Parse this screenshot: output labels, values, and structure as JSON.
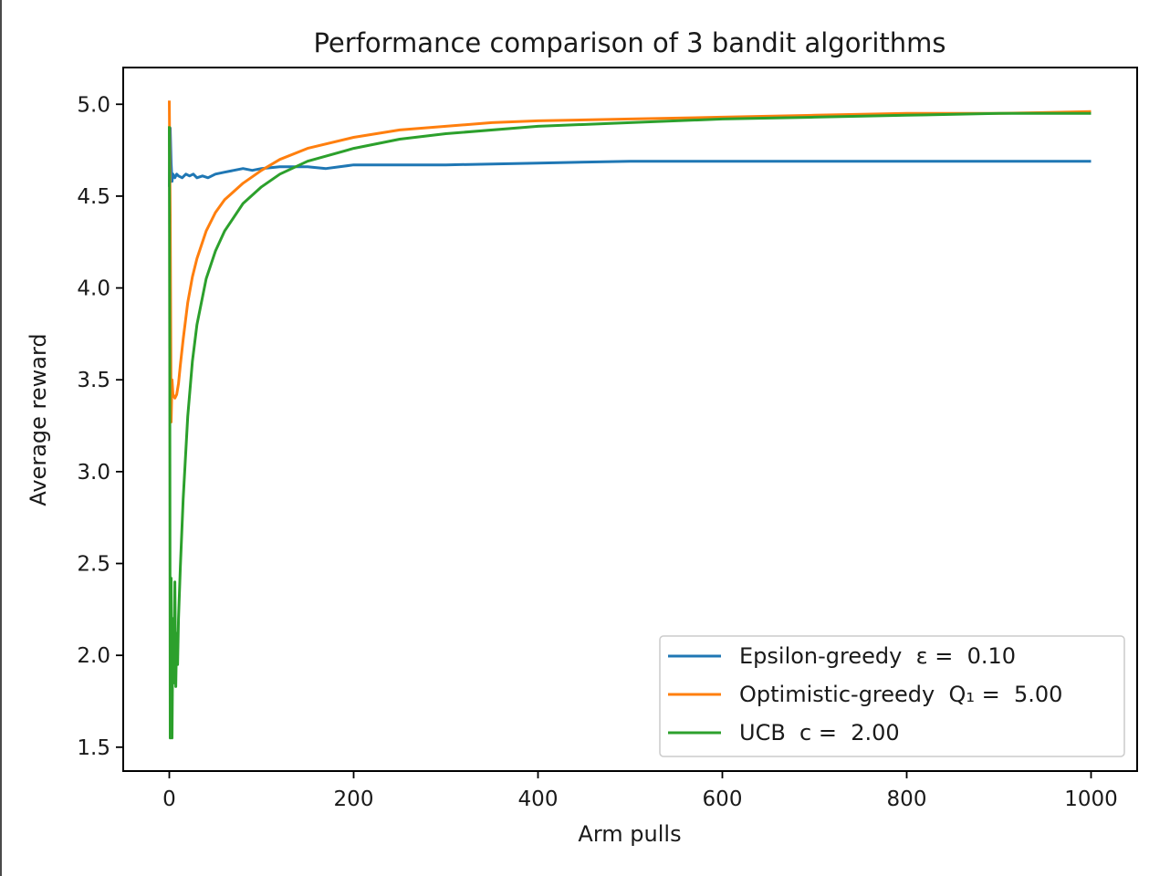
{
  "chart_data": {
    "type": "line",
    "title": "Performance comparison of 3 bandit algorithms",
    "xlabel": "Arm pulls",
    "ylabel": "Average reward",
    "xlim": [
      -50,
      1050
    ],
    "ylim": [
      1.37,
      5.2
    ],
    "xticks": [
      0,
      200,
      400,
      600,
      800,
      1000
    ],
    "xtick_labels": [
      "0",
      "200",
      "400",
      "600",
      "800",
      "1000"
    ],
    "yticks": [
      1.5,
      2.0,
      2.5,
      3.0,
      3.5,
      4.0,
      4.5,
      5.0
    ],
    "ytick_labels": [
      "1.5",
      "2.0",
      "2.5",
      "3.0",
      "3.5",
      "4.0",
      "4.5",
      "5.0"
    ],
    "grid": false,
    "legend_position": "lower-right",
    "series": [
      {
        "name": "Epsilon-greedy  ε =  0.10",
        "color": "#1f77b4",
        "points": [
          [
            0,
            4.55
          ],
          [
            1,
            4.87
          ],
          [
            2,
            4.68
          ],
          [
            3,
            4.58
          ],
          [
            4,
            4.62
          ],
          [
            6,
            4.6
          ],
          [
            8,
            4.62
          ],
          [
            10,
            4.61
          ],
          [
            14,
            4.6
          ],
          [
            18,
            4.62
          ],
          [
            22,
            4.61
          ],
          [
            26,
            4.62
          ],
          [
            30,
            4.6
          ],
          [
            36,
            4.61
          ],
          [
            42,
            4.6
          ],
          [
            50,
            4.62
          ],
          [
            60,
            4.63
          ],
          [
            70,
            4.64
          ],
          [
            80,
            4.65
          ],
          [
            90,
            4.64
          ],
          [
            100,
            4.65
          ],
          [
            120,
            4.66
          ],
          [
            150,
            4.66
          ],
          [
            170,
            4.65
          ],
          [
            200,
            4.67
          ],
          [
            300,
            4.67
          ],
          [
            400,
            4.68
          ],
          [
            500,
            4.69
          ],
          [
            600,
            4.69
          ],
          [
            700,
            4.69
          ],
          [
            800,
            4.69
          ],
          [
            900,
            4.69
          ],
          [
            1000,
            4.69
          ]
        ]
      },
      {
        "name": "Optimistic-greedy  Q₁ =  5.00",
        "color": "#ff7f0e",
        "points": [
          [
            0,
            5.02
          ],
          [
            1,
            4.4
          ],
          [
            2,
            3.27
          ],
          [
            3,
            3.5
          ],
          [
            4,
            3.42
          ],
          [
            6,
            3.4
          ],
          [
            8,
            3.42
          ],
          [
            10,
            3.48
          ],
          [
            12,
            3.58
          ],
          [
            15,
            3.72
          ],
          [
            20,
            3.92
          ],
          [
            25,
            4.06
          ],
          [
            30,
            4.16
          ],
          [
            40,
            4.31
          ],
          [
            50,
            4.41
          ],
          [
            60,
            4.48
          ],
          [
            80,
            4.57
          ],
          [
            100,
            4.64
          ],
          [
            120,
            4.7
          ],
          [
            150,
            4.76
          ],
          [
            200,
            4.82
          ],
          [
            250,
            4.86
          ],
          [
            300,
            4.88
          ],
          [
            350,
            4.9
          ],
          [
            400,
            4.91
          ],
          [
            500,
            4.92
          ],
          [
            600,
            4.93
          ],
          [
            700,
            4.94
          ],
          [
            800,
            4.95
          ],
          [
            900,
            4.95
          ],
          [
            1000,
            4.96
          ]
        ]
      },
      {
        "name": "UCB  c =  2.00",
        "color": "#2ca02c",
        "points": [
          [
            0,
            4.88
          ],
          [
            0.5,
            3.6
          ],
          [
            1,
            1.55
          ],
          [
            1.5,
            1.9
          ],
          [
            2,
            2.42
          ],
          [
            3,
            1.55
          ],
          [
            4,
            2.2
          ],
          [
            5,
            1.85
          ],
          [
            6,
            2.4
          ],
          [
            7,
            1.83
          ],
          [
            8,
            2.12
          ],
          [
            9,
            1.95
          ],
          [
            10,
            2.2
          ],
          [
            12,
            2.48
          ],
          [
            15,
            2.85
          ],
          [
            20,
            3.3
          ],
          [
            25,
            3.6
          ],
          [
            30,
            3.8
          ],
          [
            40,
            4.05
          ],
          [
            50,
            4.2
          ],
          [
            60,
            4.31
          ],
          [
            80,
            4.46
          ],
          [
            100,
            4.55
          ],
          [
            120,
            4.62
          ],
          [
            150,
            4.69
          ],
          [
            200,
            4.76
          ],
          [
            250,
            4.81
          ],
          [
            300,
            4.84
          ],
          [
            400,
            4.88
          ],
          [
            500,
            4.9
          ],
          [
            600,
            4.92
          ],
          [
            700,
            4.93
          ],
          [
            800,
            4.94
          ],
          [
            900,
            4.95
          ],
          [
            1000,
            4.95
          ]
        ]
      }
    ]
  }
}
